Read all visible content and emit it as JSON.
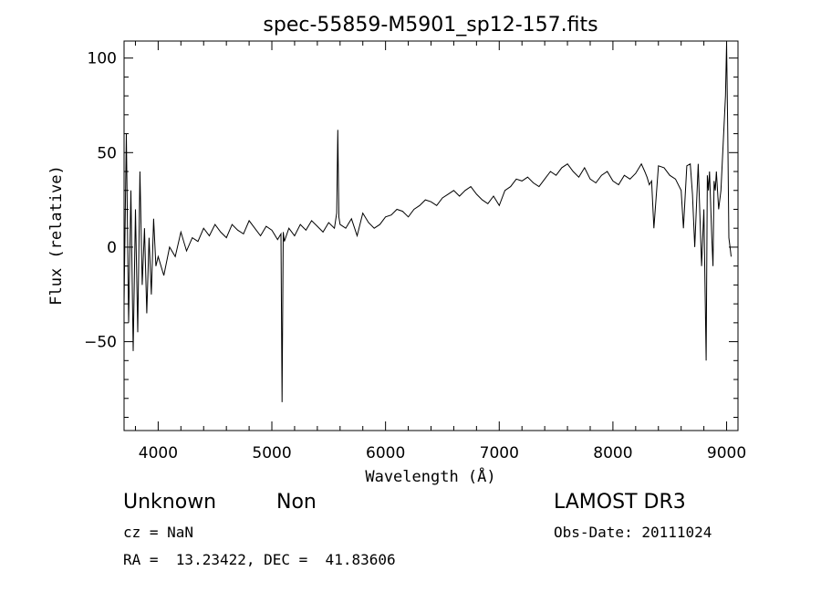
{
  "chart_data": {
    "type": "line",
    "title": "spec-55859-M5901_sp12-157.fits",
    "xlabel": "Wavelength (Å)",
    "ylabel": "Flux (relative)",
    "xlim": [
      3700,
      9100
    ],
    "ylim": [
      -97,
      109
    ],
    "x_ticks": [
      4000,
      5000,
      6000,
      7000,
      8000,
      9000
    ],
    "y_ticks": [
      -50,
      0,
      50,
      100
    ],
    "tick_labels": {
      "x": [
        "4000",
        "5000",
        "6000",
        "7000",
        "8000",
        "9000"
      ],
      "y": [
        "−50",
        "0",
        "50",
        "100"
      ]
    },
    "grid": false,
    "line_color": "#000000",
    "series": [
      {
        "x": [
          3700,
          3720,
          3740,
          3760,
          3780,
          3800,
          3820,
          3840,
          3860,
          3880,
          3900,
          3920,
          3940,
          3960,
          3980,
          4000,
          4050,
          4100,
          4150,
          4200,
          4250,
          4300,
          4350,
          4400,
          4450,
          4500,
          4550,
          4600,
          4650,
          4700,
          4750,
          4800,
          4850,
          4900,
          4950,
          5000,
          5050,
          5080,
          5090,
          5100,
          5110,
          5150,
          5200,
          5250,
          5300,
          5350,
          5400,
          5450,
          5500,
          5550,
          5570,
          5580,
          5590,
          5600,
          5650,
          5700,
          5750,
          5800,
          5850,
          5900,
          5950,
          6000,
          6050,
          6100,
          6150,
          6200,
          6250,
          6300,
          6350,
          6400,
          6450,
          6500,
          6550,
          6600,
          6650,
          6700,
          6750,
          6800,
          6850,
          6900,
          6950,
          7000,
          7050,
          7100,
          7150,
          7200,
          7250,
          7300,
          7350,
          7400,
          7450,
          7500,
          7550,
          7600,
          7650,
          7700,
          7750,
          7800,
          7850,
          7900,
          7950,
          8000,
          8050,
          8100,
          8150,
          8200,
          8250,
          8280,
          8300,
          8320,
          8340,
          8360,
          8400,
          8450,
          8500,
          8550,
          8600,
          8620,
          8650,
          8680,
          8700,
          8720,
          8750,
          8780,
          8800,
          8820,
          8830,
          8840,
          8850,
          8870,
          8880,
          8890,
          8900,
          8910,
          8930,
          8950,
          8970,
          8990,
          9000,
          9010,
          9020,
          9030,
          9040
        ],
        "y": [
          -30,
          60,
          -40,
          30,
          -55,
          20,
          -45,
          40,
          -20,
          10,
          -35,
          5,
          -25,
          15,
          -10,
          -5,
          -15,
          0,
          -5,
          8,
          -2,
          5,
          3,
          10,
          6,
          12,
          8,
          5,
          12,
          9,
          7,
          14,
          10,
          6,
          11,
          9,
          4,
          7,
          -82,
          8,
          3,
          10,
          6,
          12,
          9,
          14,
          11,
          8,
          13,
          10,
          18,
          62,
          16,
          12,
          10,
          15,
          6,
          18,
          13,
          10,
          12,
          16,
          17,
          20,
          19,
          16,
          20,
          22,
          25,
          24,
          22,
          26,
          28,
          30,
          27,
          30,
          32,
          28,
          25,
          23,
          27,
          22,
          30,
          32,
          36,
          35,
          37,
          34,
          32,
          36,
          40,
          38,
          42,
          44,
          40,
          37,
          42,
          36,
          34,
          38,
          40,
          35,
          33,
          38,
          36,
          39,
          44,
          40,
          37,
          33,
          35,
          10,
          43,
          42,
          38,
          36,
          30,
          10,
          43,
          44,
          28,
          0,
          44,
          -10,
          20,
          -60,
          38,
          30,
          40,
          5,
          -10,
          35,
          30,
          40,
          20,
          30,
          55,
          80,
          108,
          60,
          5,
          0,
          -5
        ]
      }
    ]
  },
  "info": {
    "class": "Unknown",
    "subclass": "Non",
    "survey": "LAMOST DR3",
    "cz": "cz = NaN",
    "obs_date": "Obs-Date: 20111024",
    "coords": "RA =  13.23422, DEC =  41.83606"
  }
}
